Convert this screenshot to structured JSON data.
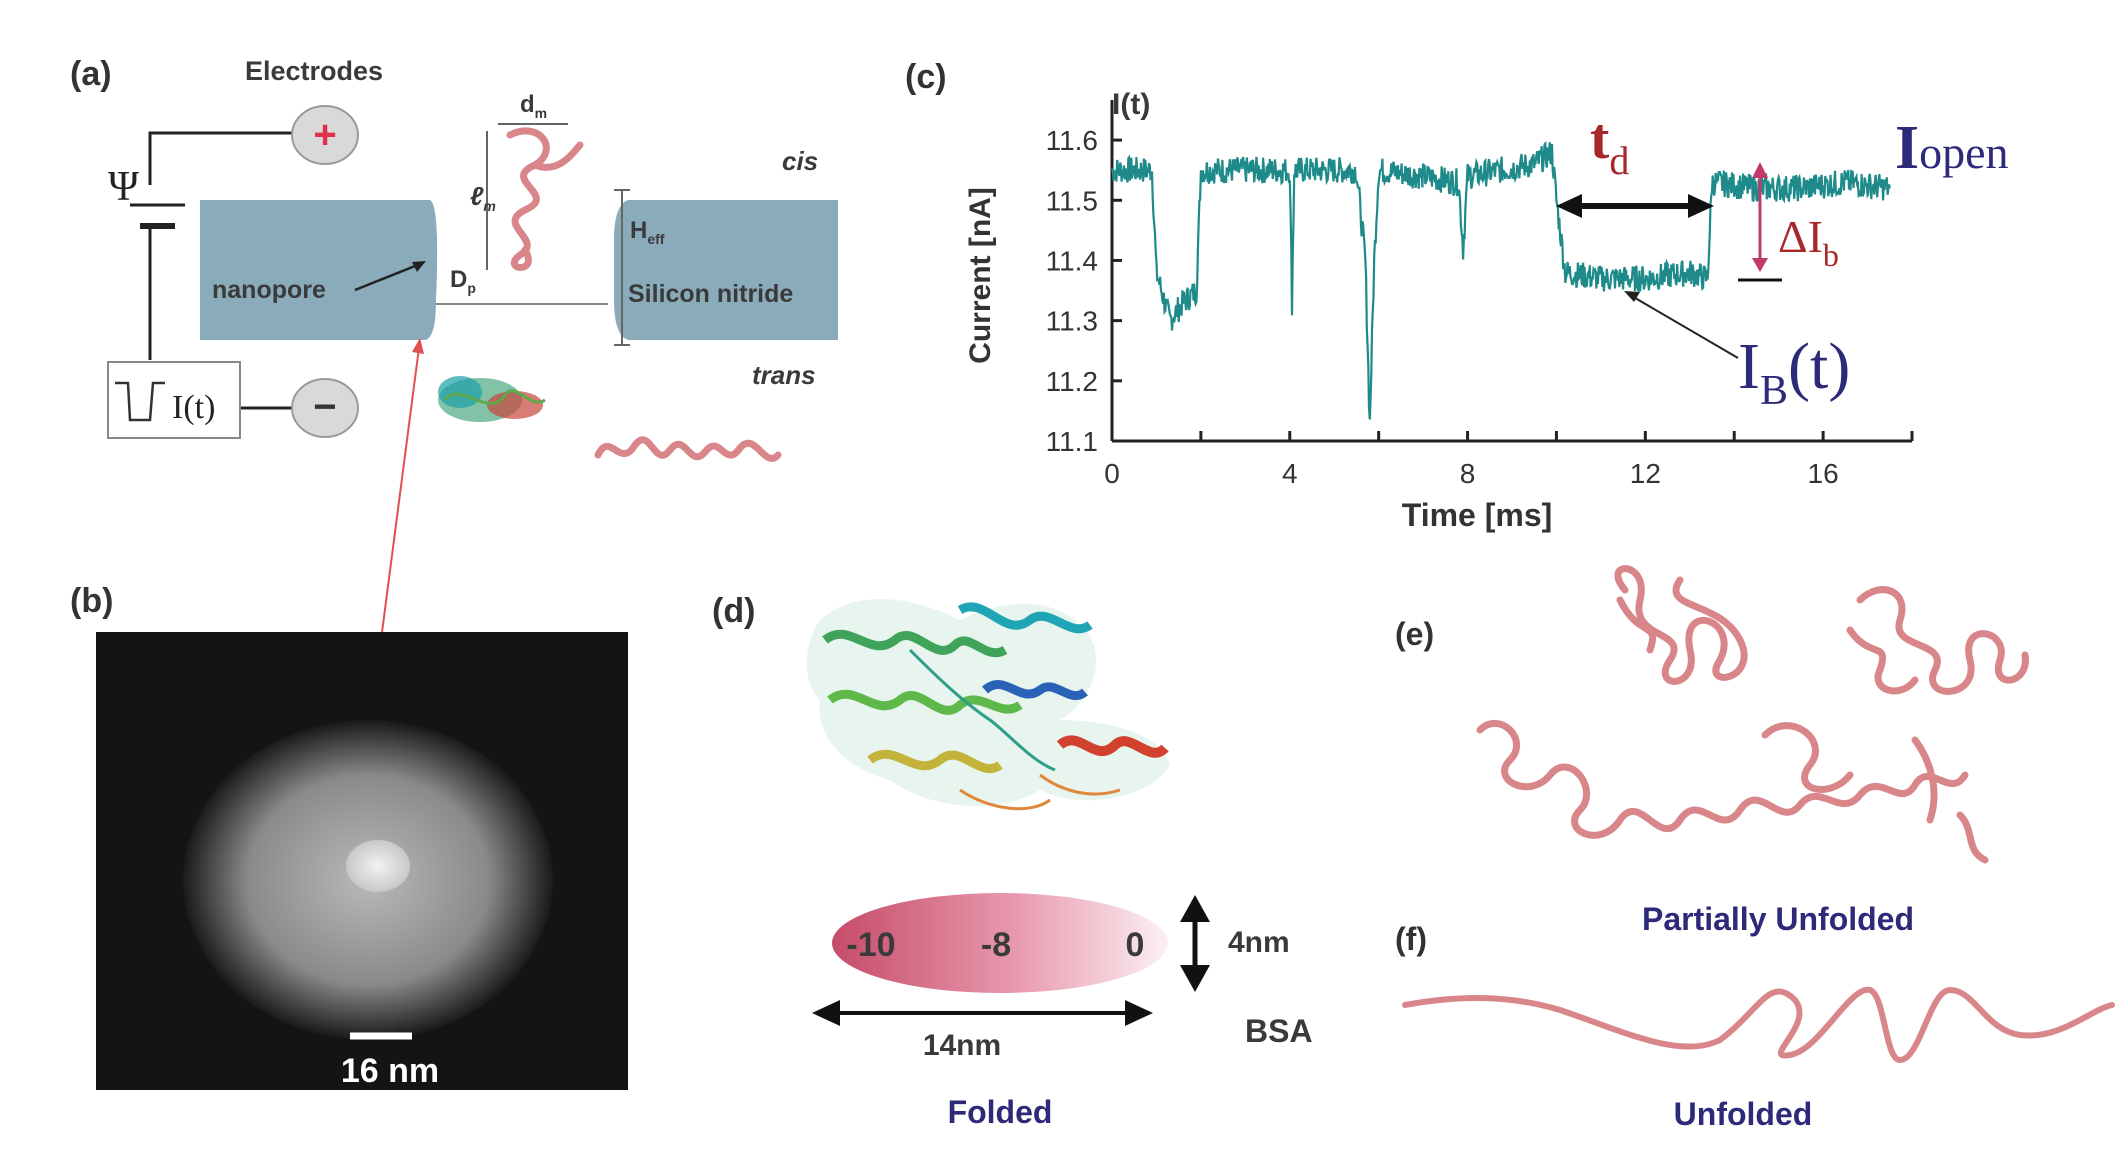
{
  "panels": {
    "a": "(a)",
    "b": "(b)",
    "c": "(c)",
    "d": "(d)",
    "e": "(e)",
    "f": "(f)"
  },
  "panel_a": {
    "electrodes": "Electrodes",
    "plus": "+",
    "minus": "−",
    "psi": "Ψ",
    "current_box": "I(t)",
    "nanopore": "nanopore",
    "silicon_nitride": "Silicon nitride",
    "cis": "cis",
    "trans": "trans",
    "dm": "d",
    "dm_sub": "m",
    "lm": "ℓ",
    "lm_sub": "m",
    "dp": "D",
    "dp_sub": "p",
    "heff": "H",
    "heff_sub": "eff"
  },
  "panel_b": {
    "scale": "16 nm"
  },
  "panel_c": {
    "it_label": "I(t)",
    "td": "t",
    "td_sub": "d",
    "iopen": "I",
    "iopen_sub": "open",
    "delta_ib": "ΔI",
    "delta_ib_sub": "b",
    "ib": "I",
    "ib_sub": "B",
    "ib_tail": "(t)"
  },
  "panel_d": {
    "ellipse_values": [
      "-10",
      "-8",
      "0"
    ],
    "height": "4nm",
    "width": "14nm",
    "bsa": "BSA",
    "folded": "Folded"
  },
  "panel_e": {
    "label": "Partially Unfolded"
  },
  "panel_f": {
    "label": "Unfolded"
  },
  "colors": {
    "trace": "#1f8a8a",
    "membrane": "#8aabba",
    "protein": "#d9868a",
    "label_blue": "#2e2a7a",
    "label_red": "#a8282a"
  },
  "chart_data": {
    "type": "line",
    "xlabel": "Time [ms]",
    "ylabel": "Current [nA]",
    "xlim": [
      0,
      18
    ],
    "ylim": [
      11.1,
      11.65
    ],
    "xticks": [
      0,
      4,
      8,
      12,
      16
    ],
    "yticks": [
      11.1,
      11.2,
      11.3,
      11.4,
      11.5,
      11.6
    ],
    "series": [
      {
        "x": [
          0,
          0.9,
          1.0,
          1.3,
          1.6,
          1.9,
          2.0,
          3.5,
          4.0,
          4.05,
          4.1,
          5.5,
          5.7,
          5.8,
          5.9,
          6.0,
          7.0,
          7.8,
          7.9,
          8.0,
          9.5,
          9.9,
          10.0,
          10.2,
          11.0,
          12.0,
          13.0,
          13.4,
          13.5,
          14.5,
          15.5,
          16.5,
          17.5
        ],
        "y": [
          11.55,
          11.55,
          11.38,
          11.3,
          11.33,
          11.35,
          11.55,
          11.55,
          11.55,
          11.33,
          11.55,
          11.55,
          11.4,
          11.13,
          11.4,
          11.55,
          11.54,
          11.53,
          11.42,
          11.54,
          11.56,
          11.58,
          11.5,
          11.38,
          11.37,
          11.37,
          11.38,
          11.37,
          11.53,
          11.52,
          11.52,
          11.53,
          11.52
        ]
      }
    ]
  }
}
